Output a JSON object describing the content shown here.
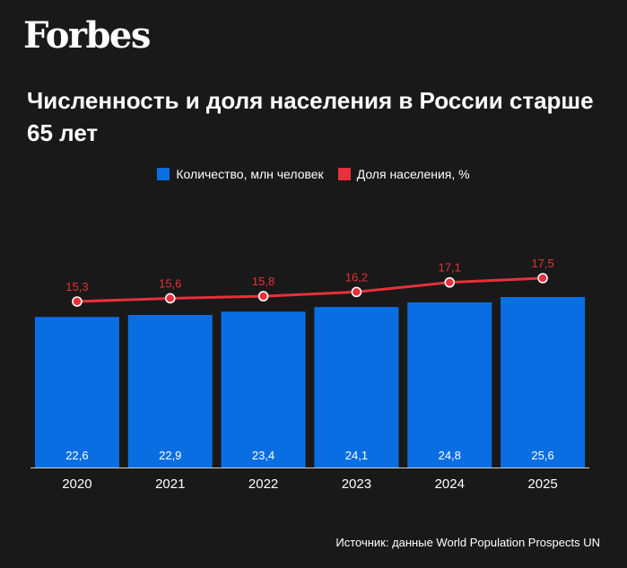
{
  "brand": "Forbes",
  "chart_data": {
    "type": "bar",
    "title": "Численность и доля населения в России старше 65 лет",
    "categories": [
      "2020",
      "2021",
      "2022",
      "2023",
      "2024",
      "2025"
    ],
    "series": [
      {
        "name": "Количество, млн человек",
        "kind": "bar",
        "color": "#0a6ee3",
        "values": [
          22.6,
          22.9,
          23.4,
          24.1,
          24.8,
          25.6
        ],
        "labels": [
          "22,6",
          "22,9",
          "23,4",
          "24,1",
          "24,8",
          "25,6"
        ]
      },
      {
        "name": "Доля населения, %",
        "kind": "line",
        "color": "#e8303a",
        "values": [
          15.3,
          15.6,
          15.8,
          16.2,
          17.1,
          17.5
        ],
        "labels": [
          "15,3",
          "15,6",
          "15,8",
          "16,2",
          "17,1",
          "17,5"
        ]
      }
    ],
    "legend_position": "top-center",
    "grid": false
  },
  "source": "Источник: данные World Population Prospects UN"
}
